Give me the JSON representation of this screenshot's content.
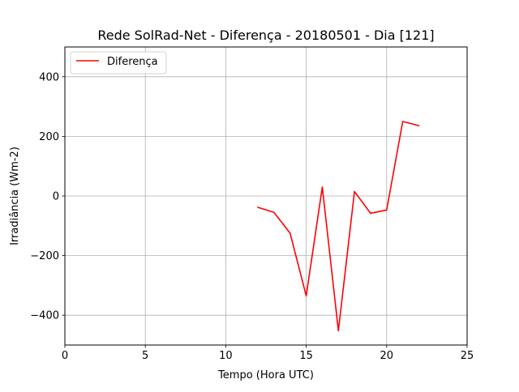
{
  "chart_data": {
    "type": "line",
    "title": "Rede SolRad-Net - Diferença - 20180501 - Dia [121]",
    "xlabel": "Tempo (Hora UTC)",
    "ylabel": "Irradiância (Wm-2)",
    "xlim": [
      0,
      25
    ],
    "ylim": [
      -500,
      500
    ],
    "xticks": [
      0,
      5,
      10,
      15,
      20,
      25
    ],
    "yticks": [
      -400,
      -200,
      0,
      200,
      400
    ],
    "xtick_labels": [
      "0",
      "5",
      "10",
      "15",
      "20",
      "25"
    ],
    "ytick_labels": [
      "−400",
      "−200",
      "0",
      "200",
      "400"
    ],
    "grid": true,
    "legend_position": "upper-left",
    "series": [
      {
        "name": "Diferença",
        "color": "#ff0000",
        "x": [
          12,
          13,
          14,
          15,
          16,
          17,
          18,
          19,
          20,
          21,
          22
        ],
        "y": [
          -38,
          -55,
          -125,
          -335,
          30,
          -452,
          15,
          -58,
          -47,
          250,
          236
        ]
      }
    ]
  }
}
